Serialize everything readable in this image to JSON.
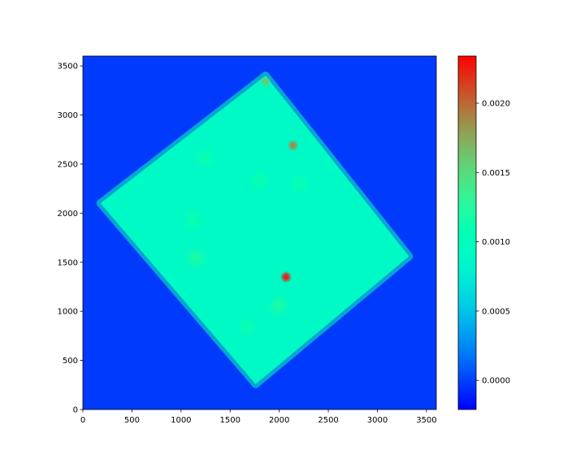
{
  "chart_data": {
    "type": "heatmap",
    "title": "",
    "xlabel": "",
    "ylabel": "",
    "xlim": [
      0,
      3600
    ],
    "ylim": [
      0,
      3600
    ],
    "x_ticks": [
      0,
      500,
      1000,
      1500,
      2000,
      2500,
      3000,
      3500
    ],
    "y_ticks": [
      0,
      500,
      1000,
      1500,
      2000,
      2500,
      3000,
      3500
    ],
    "x_tick_labels": [
      "0",
      "500",
      "1000",
      "1500",
      "2000",
      "2500",
      "3000",
      "3500"
    ],
    "y_tick_labels": [
      "0",
      "500",
      "1000",
      "1500",
      "2000",
      "2500",
      "3000",
      "3500"
    ],
    "background_value": -2e-05,
    "region": {
      "shape": "rotated square",
      "corners": [
        [
          1760,
          260
        ],
        [
          3320,
          1560
        ],
        [
          1860,
          3400
        ],
        [
          180,
          2100
        ]
      ],
      "base_value": 0.0009,
      "edge_value": 0.0011
    },
    "hotspots": [
      {
        "x": 2070,
        "y": 1350,
        "value": 0.0023
      },
      {
        "x": 2140,
        "y": 2690,
        "value": 0.0019
      },
      {
        "x": 1860,
        "y": 3340,
        "value": 0.0016
      },
      {
        "x": 1150,
        "y": 1540,
        "value": 0.0012
      },
      {
        "x": 1990,
        "y": 1060,
        "value": 0.0012
      },
      {
        "x": 1800,
        "y": 2330,
        "value": 0.0011
      },
      {
        "x": 1120,
        "y": 1930,
        "value": 0.0011
      },
      {
        "x": 1670,
        "y": 840,
        "value": 0.0011
      },
      {
        "x": 2210,
        "y": 2300,
        "value": 0.0011
      },
      {
        "x": 1250,
        "y": 2560,
        "value": 0.0011
      }
    ],
    "colorbar": {
      "colormap": "rainbow",
      "range": [
        -0.00021,
        0.00234
      ],
      "ticks": [
        0.0,
        0.0005,
        0.001,
        0.0015,
        0.002
      ],
      "tick_labels": [
        "0.0000",
        "0.0005",
        "0.0010",
        "0.0015",
        "0.0020"
      ]
    }
  }
}
